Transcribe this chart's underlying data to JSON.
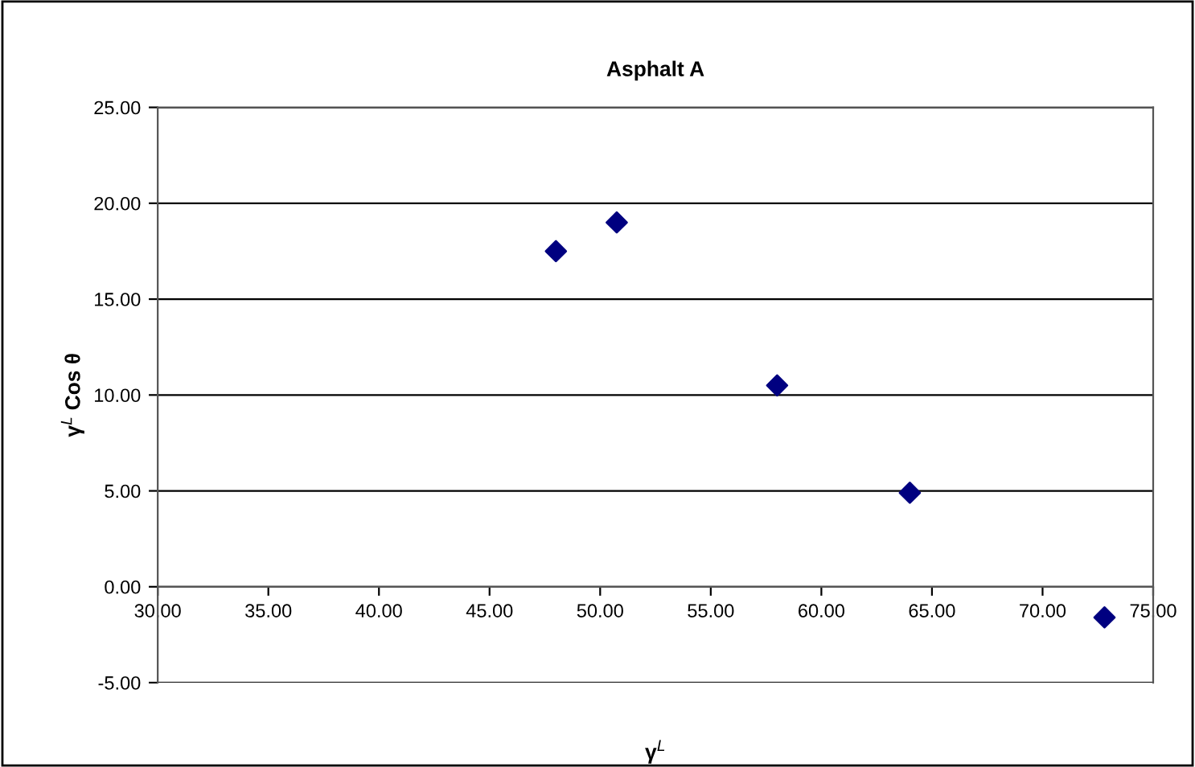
{
  "chart_data": {
    "type": "scatter",
    "title": "Asphalt A",
    "xlabel": "γ$^{L}$",
    "ylabel": "γ$^{L}$ Cos θ",
    "series": [
      {
        "color": "#000080",
        "x": [
          48.0,
          50.75,
          58.0,
          64.0,
          72.8
        ],
        "values": [
          17.5,
          19.0,
          10.5,
          4.9,
          -1.6
        ]
      }
    ],
    "marker": "diamond",
    "grid": "y",
    "xlim": [
      30,
      75
    ],
    "xticks": [
      {
        "value": 30,
        "label": "30.00"
      },
      {
        "value": 35,
        "label": "35.00"
      },
      {
        "value": 40,
        "label": "40.00"
      },
      {
        "value": 45,
        "label": "45.00"
      },
      {
        "value": 50,
        "label": "50.00"
      },
      {
        "value": 55,
        "label": "55.00"
      },
      {
        "value": 60,
        "label": "60.00"
      },
      {
        "value": 65,
        "label": "65.00"
      },
      {
        "value": 70,
        "label": "70.00"
      },
      {
        "value": 75,
        "label": "75.00"
      }
    ],
    "ylim": [
      -5,
      25
    ],
    "yticks": [
      {
        "value": -5,
        "label": "-5.00"
      },
      {
        "value": 0,
        "label": "0.00"
      },
      {
        "value": 5,
        "label": "5.00"
      },
      {
        "value": 10,
        "label": "10.00"
      },
      {
        "value": 15,
        "label": "15.00"
      },
      {
        "value": 20,
        "label": "20.00"
      },
      {
        "value": 25,
        "label": "25.00"
      }
    ]
  }
}
